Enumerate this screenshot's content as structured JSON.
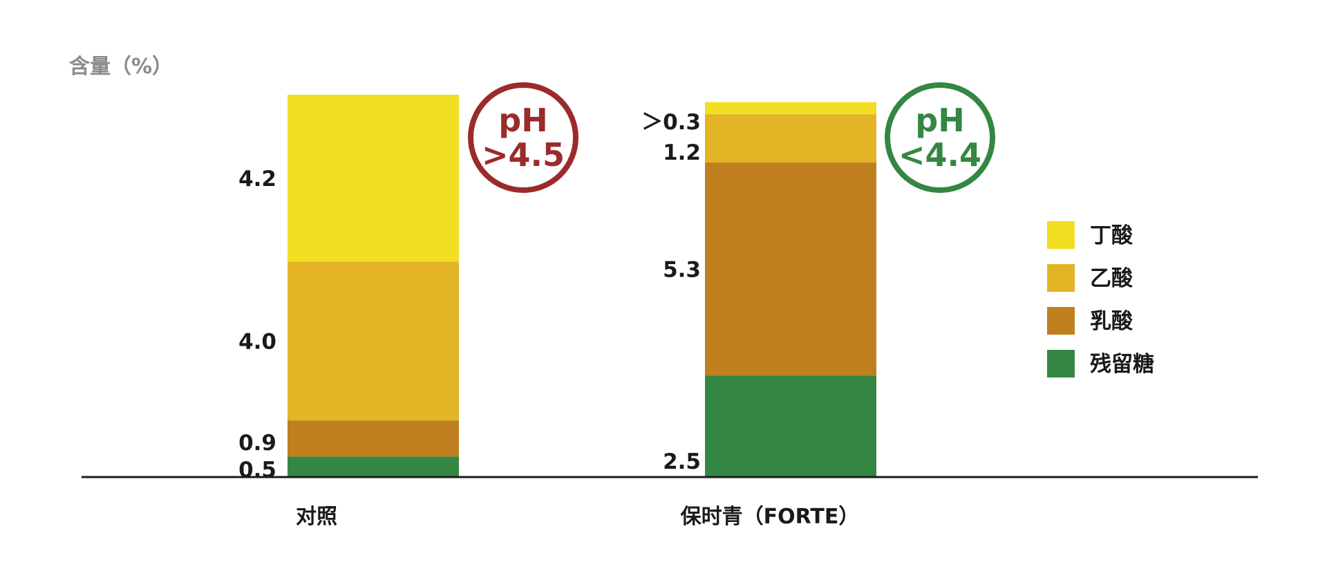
{
  "chart_data": {
    "type": "bar",
    "stacked": true,
    "ylabel": "含量（%）",
    "categories": [
      "对照",
      "保时青（FORTE）"
    ],
    "series": [
      {
        "name": "残留糖",
        "color": "#348742",
        "values": [
          0.5,
          2.5
        ],
        "labels": [
          "0.5",
          "2.5"
        ]
      },
      {
        "name": "乳酸",
        "color": "#bf7f1f",
        "values": [
          0.9,
          5.3
        ],
        "labels": [
          "0.9",
          "5.3"
        ]
      },
      {
        "name": "乙酸",
        "color": "#e2b426",
        "values": [
          4.0,
          1.2
        ],
        "labels": [
          "4.0",
          "1.2"
        ]
      },
      {
        "name": "丁酸",
        "color": "#f2de22",
        "values": [
          4.2,
          0.3
        ],
        "labels": [
          "4.2",
          "＞0.3"
        ]
      }
    ],
    "legend": {
      "position": "right",
      "order": [
        "丁酸",
        "乙酸",
        "乳酸",
        "残留糖"
      ]
    },
    "annotations": [
      {
        "category": "对照",
        "line1": "pH",
        "line2": ">4.5",
        "color": "#9b2b2b"
      },
      {
        "category": "保时青（FORTE）",
        "line1": "pH",
        "line2": "<4.4",
        "color": "#348742"
      }
    ],
    "grid": false
  }
}
